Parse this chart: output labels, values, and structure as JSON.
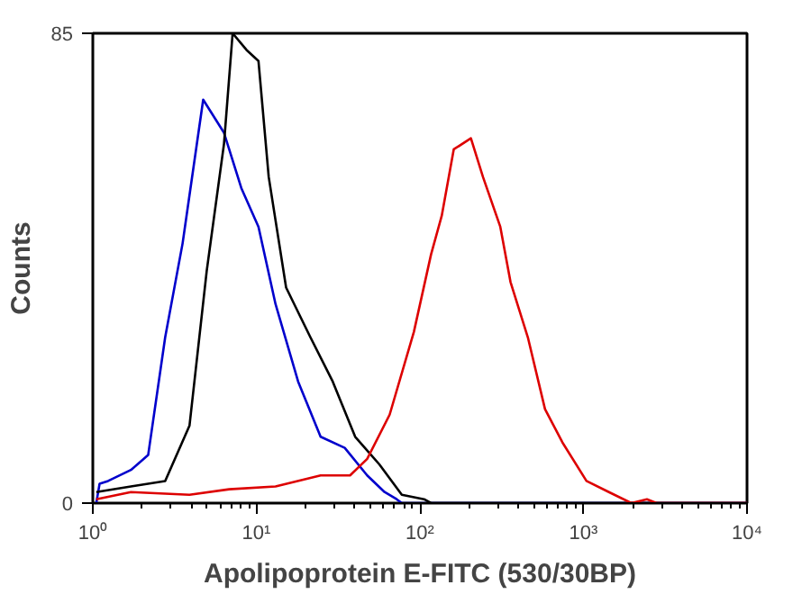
{
  "chart_data": {
    "type": "line",
    "xlabel": "Apolipoprotein E-FITC (530/30BP)",
    "ylabel": "Counts",
    "log": "x",
    "xlim": [
      1,
      10000
    ],
    "ylim": [
      0,
      85
    ],
    "xticks": [
      {
        "value": 1,
        "label": "10⁰"
      },
      {
        "value": 10,
        "label": "10¹"
      },
      {
        "value": 100,
        "label": "10²"
      },
      {
        "value": 1000,
        "label": "10³"
      },
      {
        "value": 10000,
        "label": "10⁴"
      }
    ],
    "yticks": [
      0,
      85
    ],
    "grid": false,
    "marker": "none",
    "line_style": "solid",
    "series": [
      {
        "color": "#0000cc",
        "x": [
          1.05,
          1.1,
          1.24,
          1.71,
          2.18,
          2.77,
          3.54,
          4.73,
          6.34,
          8.09,
          10.3,
          13.1,
          18.0,
          24.7,
          34.7,
          47.6,
          60.8,
          72.1,
          77.5,
          10000
        ],
        "values": [
          0,
          3.5,
          4,
          6,
          8.7,
          30,
          47,
          73,
          67,
          57,
          50,
          36,
          22,
          12,
          10,
          5,
          2,
          0.7,
          0,
          0
        ]
      },
      {
        "color": "#000000",
        "x": [
          1.05,
          1.71,
          2.77,
          3.9,
          4.97,
          6.34,
          7.16,
          8.7,
          10.3,
          11.9,
          15.2,
          21.4,
          29.3,
          40.2,
          56.5,
          77.5,
          106,
          117,
          10000
        ],
        "values": [
          2,
          3,
          4,
          14,
          42,
          65,
          85,
          82,
          80,
          59,
          39,
          30,
          22,
          12,
          7,
          1.5,
          0.7,
          0,
          0
        ]
      },
      {
        "color": "#dd0000",
        "x": [
          1.05,
          1.71,
          3.9,
          6.82,
          13.1,
          24.7,
          37.4,
          47.6,
          65.3,
          91.9,
          117,
          136,
          161,
          205,
          243,
          310,
          358,
          457,
          582,
          743,
          1043,
          1430,
          1963,
          2443,
          2800,
          10000
        ],
        "values": [
          0.7,
          2,
          1.5,
          2.5,
          3,
          5,
          5,
          8,
          16,
          31,
          45,
          52,
          64,
          66,
          59,
          50,
          40,
          30,
          17,
          11,
          4,
          2,
          0,
          0.7,
          0,
          0
        ]
      }
    ]
  }
}
